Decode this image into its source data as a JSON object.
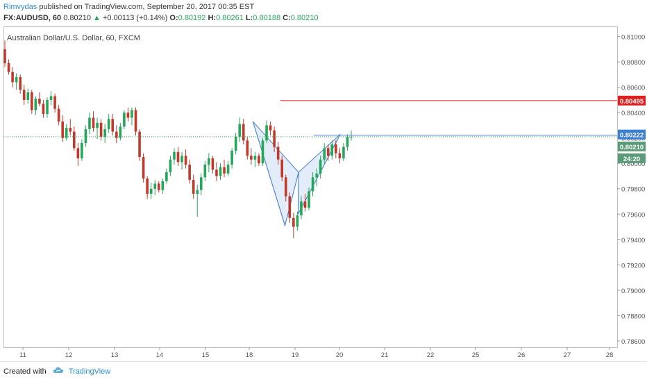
{
  "header": {
    "author": "Rimvydas",
    "published_text": "published on TradingView.com, September 20, 2017 00:35 EST",
    "symbol": "FX:AUDUSD, 60",
    "last": "0.80210",
    "change_arrow": "▲",
    "change": "+0.00113 (+0.14%)",
    "o_label": "O:",
    "o_value": "0.80192",
    "h_label": "H:",
    "h_value": "0.80261",
    "l_label": "L:",
    "l_value": "0.80188",
    "c_label": "C:",
    "c_value": "0.80210"
  },
  "footer": {
    "created_with": "Created with",
    "brand": "TradingView"
  },
  "colors": {
    "up": "#26a65b",
    "down": "#c0392b",
    "pattern_line": "#4f83d1",
    "pattern_fill": "#dce9f7",
    "resistance": "#e01f1f",
    "current_price_tag": "#5b9b7a",
    "pattern_price_tag": "#3a7fd1"
  },
  "chart_data": {
    "type": "candlestick",
    "title": "Australian Dollar/U.S. Dollar, 60, FXCM",
    "y_ticks": [
      "0.81000",
      "0.80800",
      "0.80600",
      "0.80400",
      "0.80200",
      "0.80000",
      "0.79800",
      "0.79600",
      "0.79400",
      "0.79200",
      "0.79000",
      "0.78800",
      "0.78600"
    ],
    "ylim": [
      0.7855,
      0.8108
    ],
    "x_ticks": [
      "11",
      "12",
      "13",
      "14",
      "15",
      "18",
      "19",
      "20",
      "21",
      "22",
      "25",
      "26",
      "27",
      "28"
    ],
    "price_tags": [
      {
        "label": "0.80495",
        "price": 0.80495,
        "kind": "resistance"
      },
      {
        "label": "0.80222",
        "price": 0.80222,
        "kind": "pattern"
      },
      {
        "label": "0.80210",
        "price": 0.8021,
        "kind": "current"
      },
      {
        "label": "24:20",
        "price": 0.8014,
        "kind": "timer"
      }
    ],
    "resistance_line": {
      "price": 0.80495,
      "from_day": "18",
      "from_fraction": 0.68
    },
    "pattern_line": {
      "price": 0.80222,
      "from_day": "19",
      "from_fraction": 0.42
    },
    "current_price": 0.8021,
    "harmonic_pattern": [
      {
        "day": "18",
        "frac": 0.08,
        "price": 0.8033
      },
      {
        "day": "18",
        "frac": 0.78,
        "price": 0.7951
      },
      {
        "day": "19",
        "frac": 0.08,
        "price": 0.7993
      },
      {
        "day": "19",
        "frac": 0.07,
        "price": 0.796
      },
      {
        "day": "20",
        "frac": 0.02,
        "price": 0.8023
      }
    ],
    "candles": [
      {
        "o": 0.809,
        "h": 0.8097,
        "l": 0.8076,
        "c": 0.8079
      },
      {
        "o": 0.8079,
        "h": 0.8082,
        "l": 0.807,
        "c": 0.8072
      },
      {
        "o": 0.8072,
        "h": 0.8076,
        "l": 0.806,
        "c": 0.8064
      },
      {
        "o": 0.8064,
        "h": 0.8071,
        "l": 0.8058,
        "c": 0.8068
      },
      {
        "o": 0.8068,
        "h": 0.807,
        "l": 0.8055,
        "c": 0.8058
      },
      {
        "o": 0.8058,
        "h": 0.8062,
        "l": 0.8046,
        "c": 0.805
      },
      {
        "o": 0.805,
        "h": 0.8059,
        "l": 0.8047,
        "c": 0.8056
      },
      {
        "o": 0.8056,
        "h": 0.8058,
        "l": 0.8039,
        "c": 0.8042
      },
      {
        "o": 0.8042,
        "h": 0.8053,
        "l": 0.8038,
        "c": 0.8051
      },
      {
        "o": 0.8051,
        "h": 0.8056,
        "l": 0.8045,
        "c": 0.8047
      },
      {
        "o": 0.8047,
        "h": 0.805,
        "l": 0.8036,
        "c": 0.8039
      },
      {
        "o": 0.8039,
        "h": 0.8052,
        "l": 0.8036,
        "c": 0.805
      },
      {
        "o": 0.805,
        "h": 0.8057,
        "l": 0.8046,
        "c": 0.8053
      },
      {
        "o": 0.8053,
        "h": 0.8055,
        "l": 0.804,
        "c": 0.8043
      },
      {
        "o": 0.8043,
        "h": 0.8046,
        "l": 0.803,
        "c": 0.8033
      },
      {
        "o": 0.8033,
        "h": 0.8038,
        "l": 0.8017,
        "c": 0.802
      },
      {
        "o": 0.802,
        "h": 0.8031,
        "l": 0.8018,
        "c": 0.8028
      },
      {
        "o": 0.8028,
        "h": 0.8035,
        "l": 0.8022,
        "c": 0.8025
      },
      {
        "o": 0.8025,
        "h": 0.8029,
        "l": 0.801,
        "c": 0.8012
      },
      {
        "o": 0.8012,
        "h": 0.8016,
        "l": 0.7998,
        "c": 0.8004
      },
      {
        "o": 0.8004,
        "h": 0.8019,
        "l": 0.8002,
        "c": 0.8016
      },
      {
        "o": 0.8016,
        "h": 0.803,
        "l": 0.8013,
        "c": 0.8027
      },
      {
        "o": 0.8027,
        "h": 0.804,
        "l": 0.8023,
        "c": 0.8036
      },
      {
        "o": 0.8036,
        "h": 0.8041,
        "l": 0.8025,
        "c": 0.8028
      },
      {
        "o": 0.8028,
        "h": 0.8036,
        "l": 0.8019,
        "c": 0.8032
      },
      {
        "o": 0.8032,
        "h": 0.8035,
        "l": 0.8018,
        "c": 0.8021
      },
      {
        "o": 0.8021,
        "h": 0.8031,
        "l": 0.8016,
        "c": 0.8027
      },
      {
        "o": 0.8027,
        "h": 0.8039,
        "l": 0.8024,
        "c": 0.8035
      },
      {
        "o": 0.8035,
        "h": 0.8039,
        "l": 0.8022,
        "c": 0.8025
      },
      {
        "o": 0.8025,
        "h": 0.803,
        "l": 0.8016,
        "c": 0.802
      },
      {
        "o": 0.802,
        "h": 0.8032,
        "l": 0.8018,
        "c": 0.8029
      },
      {
        "o": 0.8029,
        "h": 0.8042,
        "l": 0.8027,
        "c": 0.804
      },
      {
        "o": 0.804,
        "h": 0.8044,
        "l": 0.8033,
        "c": 0.8036
      },
      {
        "o": 0.8036,
        "h": 0.8044,
        "l": 0.803,
        "c": 0.8042
      },
      {
        "o": 0.8042,
        "h": 0.8044,
        "l": 0.8022,
        "c": 0.8025
      },
      {
        "o": 0.8025,
        "h": 0.8027,
        "l": 0.8002,
        "c": 0.8005
      },
      {
        "o": 0.8005,
        "h": 0.8008,
        "l": 0.7985,
        "c": 0.7988
      },
      {
        "o": 0.7988,
        "h": 0.799,
        "l": 0.7972,
        "c": 0.7976
      },
      {
        "o": 0.7976,
        "h": 0.7985,
        "l": 0.7972,
        "c": 0.798
      },
      {
        "o": 0.798,
        "h": 0.7987,
        "l": 0.7975,
        "c": 0.7984
      },
      {
        "o": 0.7984,
        "h": 0.7986,
        "l": 0.7977,
        "c": 0.7979
      },
      {
        "o": 0.7979,
        "h": 0.7988,
        "l": 0.7976,
        "c": 0.7986
      },
      {
        "o": 0.7986,
        "h": 0.7996,
        "l": 0.7984,
        "c": 0.7993
      },
      {
        "o": 0.7993,
        "h": 0.8006,
        "l": 0.799,
        "c": 0.8003
      },
      {
        "o": 0.8003,
        "h": 0.8012,
        "l": 0.7999,
        "c": 0.8009
      },
      {
        "o": 0.8009,
        "h": 0.8013,
        "l": 0.7998,
        "c": 0.8001
      },
      {
        "o": 0.8001,
        "h": 0.8009,
        "l": 0.7995,
        "c": 0.8006
      },
      {
        "o": 0.8006,
        "h": 0.8011,
        "l": 0.7996,
        "c": 0.7999
      },
      {
        "o": 0.7999,
        "h": 0.8003,
        "l": 0.7984,
        "c": 0.7987
      },
      {
        "o": 0.7987,
        "h": 0.7991,
        "l": 0.7972,
        "c": 0.7976
      },
      {
        "o": 0.7976,
        "h": 0.7983,
        "l": 0.7958,
        "c": 0.7979
      },
      {
        "o": 0.7979,
        "h": 0.7992,
        "l": 0.7975,
        "c": 0.7989
      },
      {
        "o": 0.7989,
        "h": 0.8002,
        "l": 0.7986,
        "c": 0.7999
      },
      {
        "o": 0.7999,
        "h": 0.8008,
        "l": 0.7993,
        "c": 0.8004
      },
      {
        "o": 0.8004,
        "h": 0.8006,
        "l": 0.7992,
        "c": 0.7995
      },
      {
        "o": 0.7995,
        "h": 0.8001,
        "l": 0.7986,
        "c": 0.799
      },
      {
        "o": 0.799,
        "h": 0.8,
        "l": 0.7987,
        "c": 0.7997
      },
      {
        "o": 0.7997,
        "h": 0.8003,
        "l": 0.7989,
        "c": 0.7992
      },
      {
        "o": 0.7992,
        "h": 0.8002,
        "l": 0.799,
        "c": 0.7999
      },
      {
        "o": 0.7999,
        "h": 0.8012,
        "l": 0.7996,
        "c": 0.801
      },
      {
        "o": 0.801,
        "h": 0.8024,
        "l": 0.8007,
        "c": 0.8021
      },
      {
        "o": 0.8021,
        "h": 0.8036,
        "l": 0.8017,
        "c": 0.8031
      },
      {
        "o": 0.8031,
        "h": 0.8035,
        "l": 0.8015,
        "c": 0.8018
      },
      {
        "o": 0.8018,
        "h": 0.8021,
        "l": 0.8003,
        "c": 0.8006
      },
      {
        "o": 0.8006,
        "h": 0.8012,
        "l": 0.7999,
        "c": 0.8003
      },
      {
        "o": 0.8003,
        "h": 0.8009,
        "l": 0.7997,
        "c": 0.8006
      },
      {
        "o": 0.8006,
        "h": 0.8008,
        "l": 0.7998,
        "c": 0.8
      },
      {
        "o": 0.8,
        "h": 0.802,
        "l": 0.7998,
        "c": 0.8018
      },
      {
        "o": 0.8018,
        "h": 0.8034,
        "l": 0.8016,
        "c": 0.803
      },
      {
        "o": 0.803,
        "h": 0.8033,
        "l": 0.8022,
        "c": 0.8026
      },
      {
        "o": 0.8026,
        "h": 0.8029,
        "l": 0.8009,
        "c": 0.8013
      },
      {
        "o": 0.8013,
        "h": 0.8017,
        "l": 0.7999,
        "c": 0.8003
      },
      {
        "o": 0.8003,
        "h": 0.8006,
        "l": 0.7986,
        "c": 0.7989
      },
      {
        "o": 0.7989,
        "h": 0.7991,
        "l": 0.797,
        "c": 0.7974
      },
      {
        "o": 0.7974,
        "h": 0.7977,
        "l": 0.7953,
        "c": 0.7957
      },
      {
        "o": 0.7957,
        "h": 0.7961,
        "l": 0.7941,
        "c": 0.795
      },
      {
        "o": 0.795,
        "h": 0.7962,
        "l": 0.7947,
        "c": 0.7959
      },
      {
        "o": 0.7959,
        "h": 0.7974,
        "l": 0.7956,
        "c": 0.797
      },
      {
        "o": 0.797,
        "h": 0.7976,
        "l": 0.7962,
        "c": 0.7965
      },
      {
        "o": 0.7965,
        "h": 0.7981,
        "l": 0.7963,
        "c": 0.7978
      },
      {
        "o": 0.7978,
        "h": 0.7993,
        "l": 0.7974,
        "c": 0.7989
      },
      {
        "o": 0.7989,
        "h": 0.7996,
        "l": 0.7982,
        "c": 0.7992
      },
      {
        "o": 0.7992,
        "h": 0.8006,
        "l": 0.7988,
        "c": 0.8003
      },
      {
        "o": 0.8003,
        "h": 0.8016,
        "l": 0.8,
        "c": 0.8012
      },
      {
        "o": 0.8012,
        "h": 0.8015,
        "l": 0.8002,
        "c": 0.8006
      },
      {
        "o": 0.8006,
        "h": 0.8018,
        "l": 0.8003,
        "c": 0.8015
      },
      {
        "o": 0.8015,
        "h": 0.8018,
        "l": 0.8004,
        "c": 0.8008
      },
      {
        "o": 0.8008,
        "h": 0.8012,
        "l": 0.8,
        "c": 0.8004
      },
      {
        "o": 0.8004,
        "h": 0.8016,
        "l": 0.8002,
        "c": 0.8013
      },
      {
        "o": 0.8013,
        "h": 0.8023,
        "l": 0.801,
        "c": 0.8021
      },
      {
        "o": 0.8021,
        "h": 0.8026,
        "l": 0.8018,
        "c": 0.8021
      }
    ]
  }
}
